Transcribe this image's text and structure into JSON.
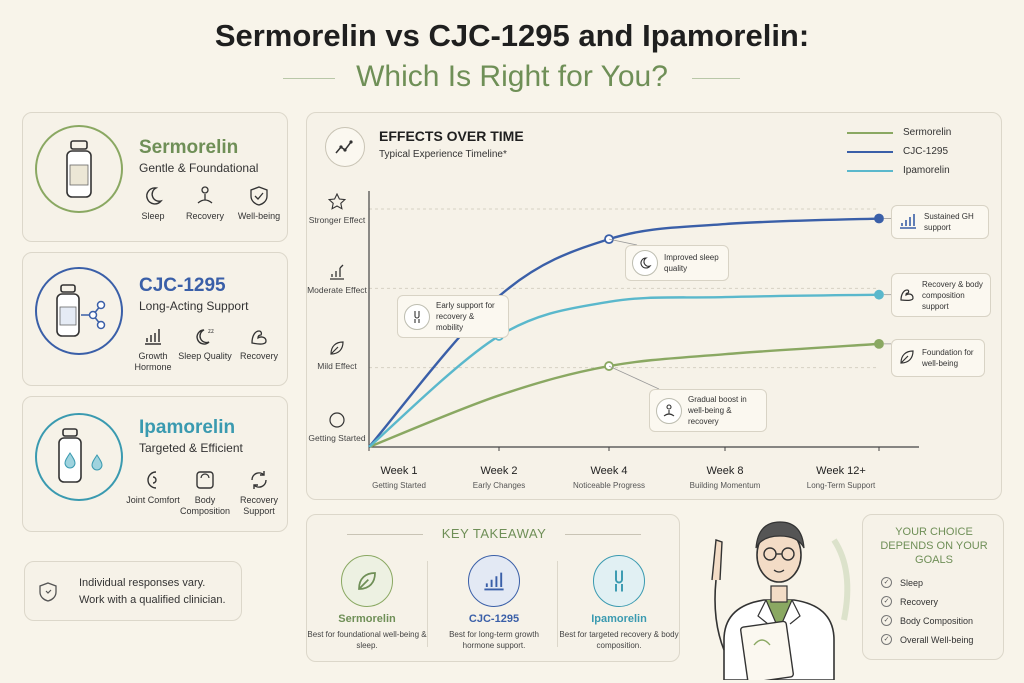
{
  "header": {
    "title_line1": "Sermorelin vs CJC-1295 and Ipamorelin:",
    "title_line2": "Which Is Right for You?"
  },
  "products": [
    {
      "name": "Sermorelin",
      "tagline": "Gentle & Foundational",
      "color": "#6f8f57",
      "features": [
        "Sleep",
        "Recovery",
        "Well-being"
      ]
    },
    {
      "name": "CJC-1295",
      "tagline": "Long-Acting Support",
      "color": "#3a5fa8",
      "features": [
        "Growth Hormone",
        "Sleep Quality",
        "Recovery"
      ]
    },
    {
      "name": "Ipamorelin",
      "tagline": "Targeted & Efficient",
      "color": "#3a9ab0",
      "features": [
        "Joint Comfort",
        "Body Composition",
        "Recovery Support"
      ]
    }
  ],
  "disclaimer": {
    "line1": "Individual responses vary.",
    "line2": "Work with a qualified clinician."
  },
  "chart_panel": {
    "title": "EFFECTS OVER TIME",
    "subtitle": "Typical Experience Timeline*",
    "y_levels": [
      "Stronger Effect",
      "Moderate Effect",
      "Mild Effect",
      "Getting Started"
    ],
    "x_sublabels": [
      "Getting Started",
      "Early Changes",
      "Noticeable Progress",
      "Building Momentum",
      "Long-Term Support"
    ],
    "callouts": {
      "early": "Early support for recovery & mobility",
      "sleep": "Improved sleep quality",
      "gradual": "Gradual boost in well-being & recovery",
      "gh": "Sustained GH support",
      "body": "Recovery & body composition support",
      "foundation": "Foundation for well-being"
    }
  },
  "chart_data": {
    "type": "line",
    "title": "EFFECTS OVER TIME",
    "subtitle": "Typical Experience Timeline*",
    "categories": [
      "Week 1",
      "Week 2",
      "Week 4",
      "Week 8",
      "Week 12+"
    ],
    "y_scale": [
      "Getting Started",
      "Mild Effect",
      "Moderate Effect",
      "Stronger Effect"
    ],
    "ylim": [
      0,
      3
    ],
    "series": [
      {
        "name": "Sermorelin",
        "color": "#8aa862",
        "values": [
          0,
          0.65,
          1.02,
          1.17,
          1.3
        ]
      },
      {
        "name": "CJC-1295",
        "color": "#3a5fa8",
        "values": [
          0,
          1.9,
          2.62,
          2.81,
          2.88
        ]
      },
      {
        "name": "Ipamorelin",
        "color": "#5ab8cc",
        "values": [
          0,
          1.4,
          1.83,
          1.89,
          1.92
        ]
      }
    ],
    "legend": "top-right",
    "grid": true
  },
  "key_takeaway": {
    "title": "KEY TAKEAWAY",
    "items": [
      {
        "name": "Sermorelin",
        "desc": "Best for foundational well-being & sleep.",
        "color": "#6f8f57"
      },
      {
        "name": "CJC-1295",
        "desc": "Best for long-term growth hormone support.",
        "color": "#3a5fa8"
      },
      {
        "name": "Ipamorelin",
        "desc": "Best for targeted recovery & body composition.",
        "color": "#3a9ab0"
      }
    ]
  },
  "choice": {
    "title": "YOUR CHOICE DEPENDS ON YOUR GOALS",
    "goals": [
      "Sleep",
      "Recovery",
      "Body Composition",
      "Overall Well-being"
    ]
  }
}
